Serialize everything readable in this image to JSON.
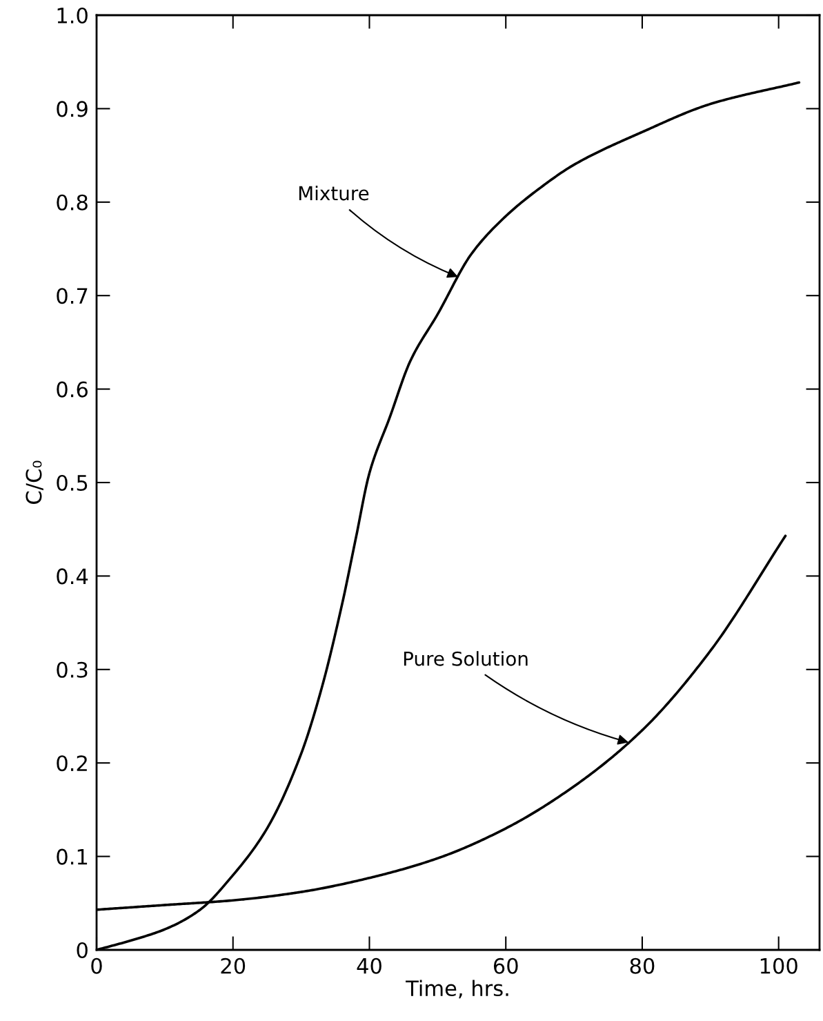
{
  "chart_data": {
    "type": "line",
    "xlabel": "Time, hrs.",
    "ylabel": "C/C₀",
    "xlim": [
      0,
      106
    ],
    "ylim": [
      0,
      1.0
    ],
    "xticks": [
      0,
      20,
      40,
      60,
      80,
      100
    ],
    "yticks": [
      0,
      0.1,
      0.2,
      0.3,
      0.4,
      0.5,
      0.6,
      0.7,
      0.8,
      0.9,
      {
        "value": 1.0,
        "label": "1.0"
      }
    ],
    "grid": false,
    "marker": "none",
    "line_style": "solid",
    "series": [
      {
        "color": "#000000",
        "x": [
          0,
          5,
          10,
          15,
          20,
          25,
          30,
          33,
          36,
          38,
          40,
          43,
          46,
          50,
          55,
          60,
          65,
          70,
          80,
          90,
          103
        ],
        "values": [
          0,
          0.01,
          0.022,
          0.042,
          0.08,
          0.13,
          0.21,
          0.28,
          0.37,
          0.44,
          0.51,
          0.57,
          0.63,
          0.68,
          0.745,
          0.785,
          0.815,
          0.84,
          0.875,
          0.905,
          0.928
        ]
      },
      {
        "color": "#000000",
        "x": [
          0,
          10,
          20,
          30,
          40,
          50,
          60,
          70,
          80,
          90,
          101
        ],
        "values": [
          0.043,
          0.048,
          0.053,
          0.062,
          0.077,
          0.098,
          0.13,
          0.175,
          0.235,
          0.32,
          0.443
        ]
      }
    ],
    "annotations": [
      {
        "text": "Mixture",
        "x": 53,
        "y": 0.72
      },
      {
        "text": "Pure Solution",
        "x": 78,
        "y": 0.222
      }
    ]
  }
}
